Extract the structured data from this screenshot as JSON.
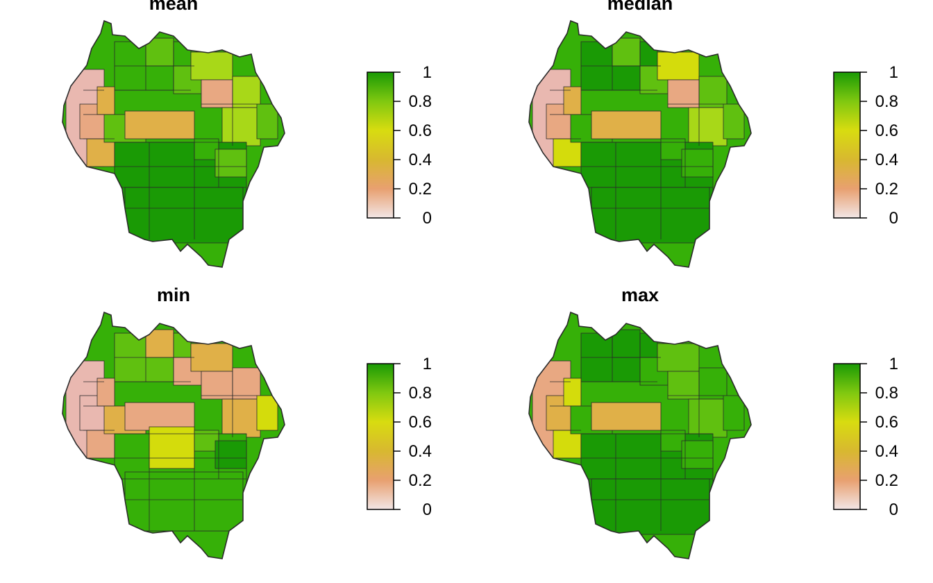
{
  "panels": [
    {
      "title": "mean",
      "palette_scheme": "mean"
    },
    {
      "title": "median",
      "palette_scheme": "median"
    },
    {
      "title": "min",
      "palette_scheme": "min"
    },
    {
      "title": "max",
      "palette_scheme": "max"
    }
  ],
  "legend": {
    "ticks": [
      "1",
      "0.8",
      "0.6",
      "0.4",
      "0.2",
      "0"
    ],
    "colors": [
      "#f2e6e6",
      "#e8a070",
      "#d8b830",
      "#d8dc10",
      "#80c810",
      "#1a9a05"
    ]
  },
  "map_colors": {
    "very_low": "#e9b8b0",
    "low": "#e8a882",
    "lowmid": "#e0b048",
    "mid": "#d4dc0c",
    "midhigh": "#a8d818",
    "high_light": "#60c010",
    "high": "#36b008",
    "very_high": "#1a9a05",
    "outline": "#2a2a2a"
  }
}
